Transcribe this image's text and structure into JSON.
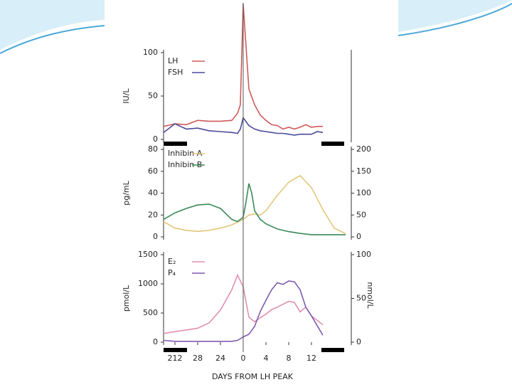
{
  "chart_data": [
    {
      "type": "line",
      "y_label": "IU/L",
      "xlim": [
        -14,
        19
      ],
      "ylim": [
        0,
        100
      ],
      "yticks": [
        0,
        50,
        100
      ],
      "series": [
        {
          "name": "LH",
          "color": "#d05a5a",
          "x": [
            -14,
            -12,
            -10,
            -8,
            -6,
            -4,
            -2,
            -1,
            -0.5,
            0,
            1,
            2,
            3,
            4,
            5,
            6,
            7,
            8,
            9,
            10,
            11,
            12,
            13,
            14
          ],
          "values": [
            15,
            18,
            17,
            22,
            21,
            21,
            22,
            30,
            40,
            156,
            58,
            40,
            28,
            22,
            17,
            16,
            12,
            14,
            12,
            14,
            17,
            14,
            15,
            15
          ]
        },
        {
          "name": "FSH",
          "color": "#4a4a9a",
          "x": [
            -14,
            -12,
            -10,
            -8,
            -6,
            -4,
            -2,
            -1,
            -0.5,
            0,
            1,
            2,
            3,
            4,
            5,
            6,
            7,
            8,
            9,
            10,
            11,
            12,
            13,
            14
          ],
          "values": [
            8,
            18,
            12,
            13,
            10,
            9,
            8,
            7,
            12,
            25,
            16,
            12,
            10,
            9,
            8,
            7,
            7,
            6,
            5,
            6,
            6,
            6,
            9,
            8
          ]
        }
      ]
    },
    {
      "type": "line",
      "y_label": "pg/mL",
      "xlim": [
        -14,
        19
      ],
      "ylim": [
        0,
        80
      ],
      "yticks": [
        0,
        20,
        40,
        60,
        80
      ],
      "y2lim": [
        0,
        200
      ],
      "y2ticks": [
        0,
        50,
        100,
        150,
        200
      ],
      "series": [
        {
          "name": "Inhibin A",
          "color": "#e2c77a",
          "x": [
            -14,
            -12,
            -10,
            -8,
            -6,
            -4,
            -2,
            0,
            1,
            2,
            3,
            4,
            6,
            8,
            10,
            12,
            14,
            16,
            18
          ],
          "values": [
            14,
            8,
            6,
            5,
            6,
            8,
            11,
            16,
            20,
            21,
            20,
            24,
            38,
            50,
            56,
            45,
            25,
            8,
            3
          ]
        },
        {
          "name": "Inhibin B",
          "color": "#3a8a5a",
          "axis": "y2",
          "x": [
            -14,
            -12,
            -10,
            -8,
            -6,
            -4,
            -2,
            -1,
            0,
            0.5,
            1,
            1.5,
            2,
            3,
            4,
            6,
            8,
            10,
            12,
            14,
            16,
            18
          ],
          "values": [
            40,
            55,
            65,
            73,
            75,
            65,
            40,
            35,
            45,
            80,
            122,
            100,
            60,
            40,
            30,
            18,
            12,
            8,
            5,
            5,
            5,
            5
          ]
        }
      ]
    },
    {
      "type": "line",
      "y_label": "pmol/L",
      "y2_label": "nmol/L",
      "x_label": "DAYS FROM LH PEAK",
      "xlim": [
        -14,
        19
      ],
      "ylim": [
        0,
        1500
      ],
      "yticks": [
        0,
        500,
        1000,
        1500
      ],
      "y2lim": [
        0,
        100
      ],
      "y2ticks": [
        0,
        50,
        100
      ],
      "xticks": [
        {
          "value": -12,
          "label": "212"
        },
        {
          "value": -8,
          "label": "28"
        },
        {
          "value": -4,
          "label": "24"
        },
        0,
        4,
        8,
        12
      ],
      "series": [
        {
          "name": "E₂",
          "color": "#e08fb0",
          "x": [
            -14,
            -12,
            -10,
            -8,
            -6,
            -4,
            -2,
            -1,
            0,
            1,
            2,
            3,
            4,
            5,
            6,
            7,
            8,
            9,
            10,
            11,
            12,
            14
          ],
          "values": [
            150,
            180,
            210,
            240,
            330,
            550,
            900,
            1150,
            950,
            430,
            350,
            420,
            480,
            560,
            600,
            650,
            700,
            680,
            520,
            600,
            450,
            300
          ]
        },
        {
          "name": "P₄",
          "color": "#7c5cb0",
          "axis": "y2",
          "x": [
            -14,
            -12,
            -10,
            -8,
            -4,
            -2,
            -1,
            0,
            1,
            2,
            3,
            4,
            5,
            6,
            7,
            8,
            9,
            10,
            11,
            12,
            14
          ],
          "values": [
            2,
            1,
            1,
            1,
            1,
            1,
            2,
            6,
            9,
            18,
            35,
            48,
            60,
            68,
            66,
            70,
            69,
            60,
            40,
            30,
            8
          ]
        }
      ]
    }
  ]
}
